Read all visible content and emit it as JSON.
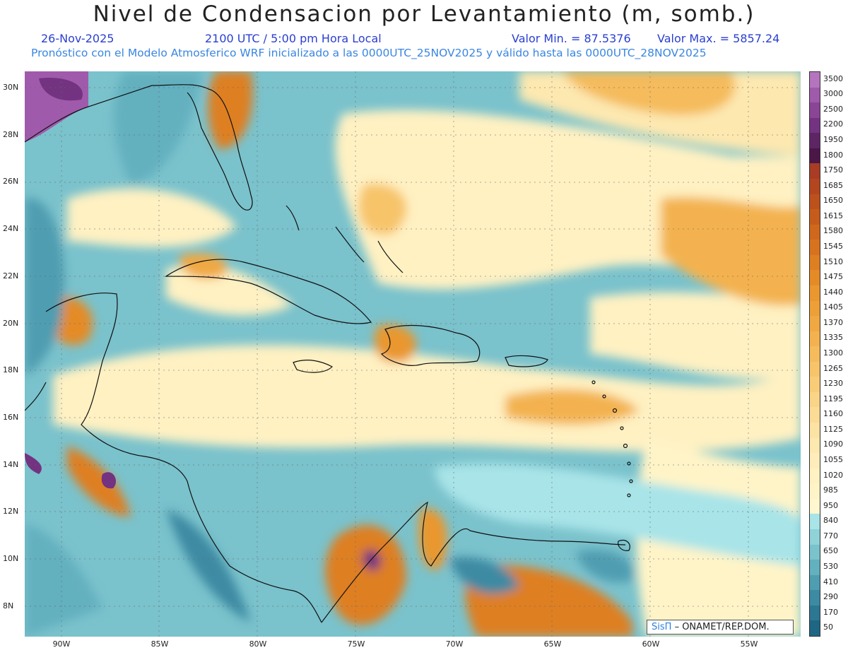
{
  "title": "Nivel de Condensacion por Levantamiento (m, somb.)",
  "date": "26-Nov-2025",
  "time": "2100 UTC / 5:00 pm Hora Local",
  "min_value": "Valor Min. = 87.5376",
  "max_value": "Valor Max. = 5857.24",
  "subtitle": "Pronóstico con el Modelo Atmosferico WRF inicializado a las 0000UTC_25NOV2025 y válido hasta las  0000UTC_28NOV2025",
  "lat_ticks": [
    "30N",
    "28N",
    "26N",
    "24N",
    "22N",
    "20N",
    "18N",
    "16N",
    "14N",
    "12N",
    "10N",
    "8N"
  ],
  "lon_ticks": [
    "90W",
    "85W",
    "80W",
    "75W",
    "70W",
    "65W",
    "60W",
    "55W"
  ],
  "legend_labels": [
    "3500",
    "3000",
    "2500",
    "2200",
    "1950",
    "1800",
    "1750",
    "1685",
    "1650",
    "1615",
    "1580",
    "1545",
    "1510",
    "1475",
    "1440",
    "1405",
    "1370",
    "1335",
    "1300",
    "1265",
    "1230",
    "1195",
    "1160",
    "1125",
    "1090",
    "1055",
    "1020",
    "985",
    "950",
    "840",
    "770",
    "650",
    "530",
    "410",
    "290",
    "170",
    "50"
  ],
  "legend_colors": [
    "#b574be",
    "#a05aab",
    "#8a4596",
    "#733380",
    "#5e2565",
    "#4a1747",
    "#a83c24",
    "#b3461f",
    "#bd511c",
    "#c65c1b",
    "#cf681c",
    "#d7731e",
    "#de7f22",
    "#e48b27",
    "#e9972e",
    "#ed9f38",
    "#f0a843",
    "#f3b24f",
    "#f5bb5c",
    "#f7c46a",
    "#f9cc78",
    "#fad487",
    "#fbdb95",
    "#fce2a3",
    "#fde8b0",
    "#feedba",
    "#fff1c2",
    "#fff4c8",
    "#fff7cf",
    "#a8e4e8",
    "#8fd2d8",
    "#7ac2cc",
    "#63b0bf",
    "#4f9db1",
    "#3c8aa3",
    "#2c7794",
    "#1f6684"
  ],
  "credit_sis": "SisΠ",
  "credit_text": "– ONAMET/REP.DOM."
}
